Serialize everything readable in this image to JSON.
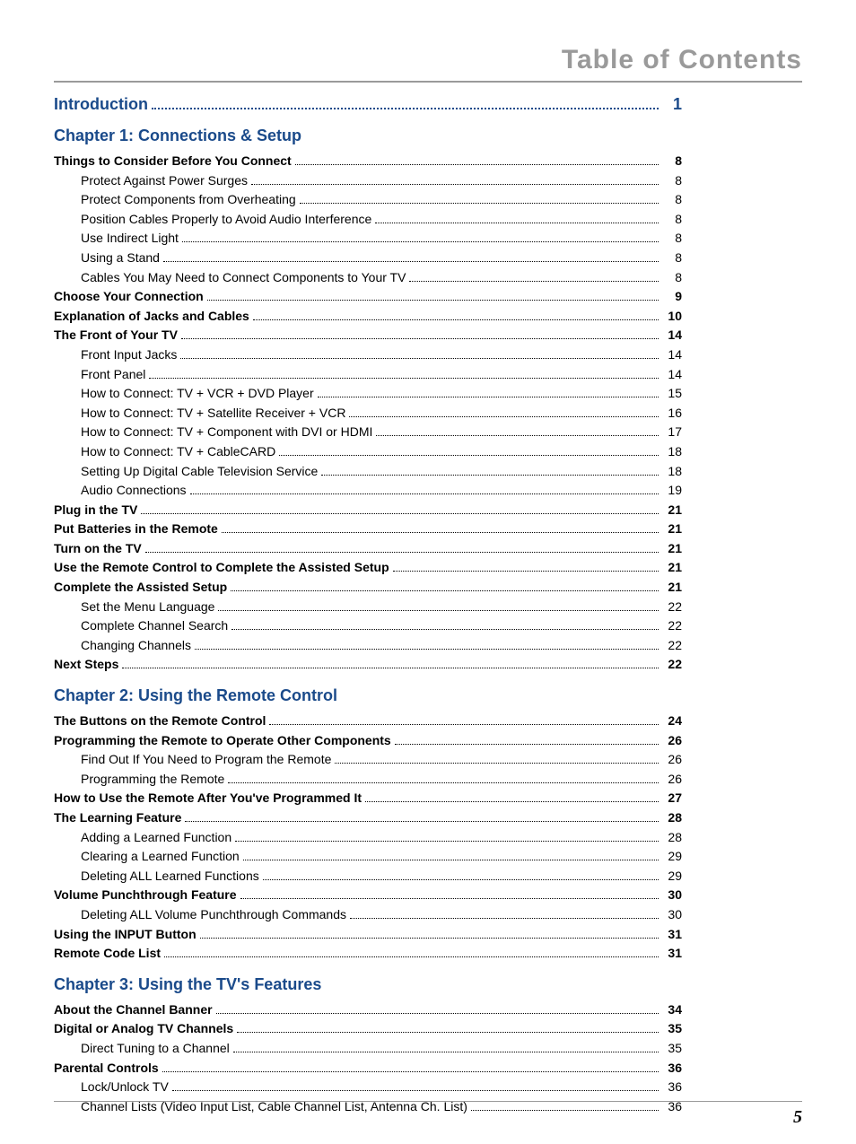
{
  "header": {
    "title": "Table of Contents",
    "color": "#9a9a9a",
    "fontsize": 30
  },
  "intro": {
    "label": "Introduction",
    "page": "1"
  },
  "chapters": [
    {
      "title": "Chapter 1: Connections & Setup",
      "entries": [
        {
          "label": "Things to Consider Before You Connect",
          "page": "8",
          "indent": 0,
          "bold": true
        },
        {
          "label": "Protect Against Power Surges",
          "page": "8",
          "indent": 1,
          "bold": false
        },
        {
          "label": "Protect Components from Overheating",
          "page": "8",
          "indent": 1,
          "bold": false
        },
        {
          "label": "Position Cables Properly to Avoid Audio Interference",
          "page": "8",
          "indent": 1,
          "bold": false
        },
        {
          "label": "Use Indirect Light",
          "page": "8",
          "indent": 1,
          "bold": false
        },
        {
          "label": "Using a Stand",
          "page": "8",
          "indent": 1,
          "bold": false
        },
        {
          "label": "Cables You May Need to Connect Components to Your TV",
          "page": "8",
          "indent": 1,
          "bold": false
        },
        {
          "label": "Choose Your Connection",
          "page": "9",
          "indent": 0,
          "bold": true
        },
        {
          "label": "Explanation of Jacks and Cables",
          "page": "10",
          "indent": 0,
          "bold": true
        },
        {
          "label": "The Front of Your TV",
          "page": "14",
          "indent": 0,
          "bold": true
        },
        {
          "label": "Front Input Jacks",
          "page": "14",
          "indent": 1,
          "bold": false
        },
        {
          "label": "Front Panel",
          "page": "14",
          "indent": 1,
          "bold": false
        },
        {
          "label": "How to Connect: TV + VCR + DVD Player",
          "page": "15",
          "indent": 1,
          "bold": false
        },
        {
          "label": "How to Connect: TV + Satellite Receiver + VCR",
          "page": "16",
          "indent": 1,
          "bold": false
        },
        {
          "label": "How to Connect: TV + Component with DVI or HDMI",
          "page": "17",
          "indent": 1,
          "bold": false
        },
        {
          "label": "How to Connect: TV + CableCARD",
          "page": "18",
          "indent": 1,
          "bold": false
        },
        {
          "label": "Setting Up Digital Cable Television Service",
          "page": "18",
          "indent": 1,
          "bold": false
        },
        {
          "label": "Audio Connections",
          "page": "19",
          "indent": 1,
          "bold": false
        },
        {
          "label": "Plug in the TV",
          "page": "21",
          "indent": 0,
          "bold": true
        },
        {
          "label": "Put Batteries in the Remote",
          "page": "21",
          "indent": 0,
          "bold": true
        },
        {
          "label": "Turn on the TV",
          "page": "21",
          "indent": 0,
          "bold": true
        },
        {
          "label": "Use the Remote Control to Complete the Assisted Setup",
          "page": "21",
          "indent": 0,
          "bold": true
        },
        {
          "label": "Complete the Assisted Setup",
          "page": "21",
          "indent": 0,
          "bold": true
        },
        {
          "label": "Set the Menu Language",
          "page": "22",
          "indent": 1,
          "bold": false
        },
        {
          "label": "Complete Channel Search",
          "page": "22",
          "indent": 1,
          "bold": false
        },
        {
          "label": "Changing Channels",
          "page": "22",
          "indent": 1,
          "bold": false
        },
        {
          "label": "Next Steps",
          "page": "22",
          "indent": 0,
          "bold": true
        }
      ]
    },
    {
      "title": "Chapter 2: Using the Remote Control",
      "entries": [
        {
          "label": "The Buttons on the Remote Control",
          "page": "24",
          "indent": 0,
          "bold": true
        },
        {
          "label": "Programming the Remote to Operate Other Components",
          "page": "26",
          "indent": 0,
          "bold": true
        },
        {
          "label": "Find Out If You Need to Program the Remote",
          "page": "26",
          "indent": 1,
          "bold": false
        },
        {
          "label": "Programming the Remote",
          "page": "26",
          "indent": 1,
          "bold": false
        },
        {
          "label": "How to Use the Remote After You've Programmed It",
          "page": "27",
          "indent": 0,
          "bold": true
        },
        {
          "label": "The Learning Feature",
          "page": "28",
          "indent": 0,
          "bold": true
        },
        {
          "label": "Adding a Learned Function",
          "page": "28",
          "indent": 1,
          "bold": false
        },
        {
          "label": "Clearing a Learned Function",
          "page": "29",
          "indent": 1,
          "bold": false
        },
        {
          "label": "Deleting ALL Learned Functions",
          "page": "29",
          "indent": 1,
          "bold": false
        },
        {
          "label": "Volume Punchthrough Feature",
          "page": "30",
          "indent": 0,
          "bold": true
        },
        {
          "label": "Deleting ALL Volume Punchthrough Commands",
          "page": "30",
          "indent": 1,
          "bold": false
        },
        {
          "label": "Using the INPUT Button",
          "page": "31",
          "indent": 0,
          "bold": true
        },
        {
          "label": "Remote Code List",
          "page": "31",
          "indent": 0,
          "bold": true
        }
      ]
    },
    {
      "title": "Chapter 3: Using the TV's Features",
      "entries": [
        {
          "label": "About the Channel Banner",
          "page": "34",
          "indent": 0,
          "bold": true
        },
        {
          "label": "Digital or Analog TV Channels",
          "page": "35",
          "indent": 0,
          "bold": true
        },
        {
          "label": "Direct Tuning to a Channel",
          "page": "35",
          "indent": 1,
          "bold": false
        },
        {
          "label": "Parental Controls",
          "page": "36",
          "indent": 0,
          "bold": true
        },
        {
          "label": "Lock/Unlock TV",
          "page": "36",
          "indent": 1,
          "bold": false
        },
        {
          "label": "Channel Lists (Video Input List, Cable Channel List, Antenna Ch. List)",
          "page": "36",
          "indent": 1,
          "bold": false
        }
      ]
    }
  ],
  "footer": {
    "page_number": "5"
  },
  "style": {
    "body_fontsize": 14,
    "chapter_color": "#1a4a8a",
    "text_color": "#000000",
    "rule_color": "#9a9a9a"
  }
}
